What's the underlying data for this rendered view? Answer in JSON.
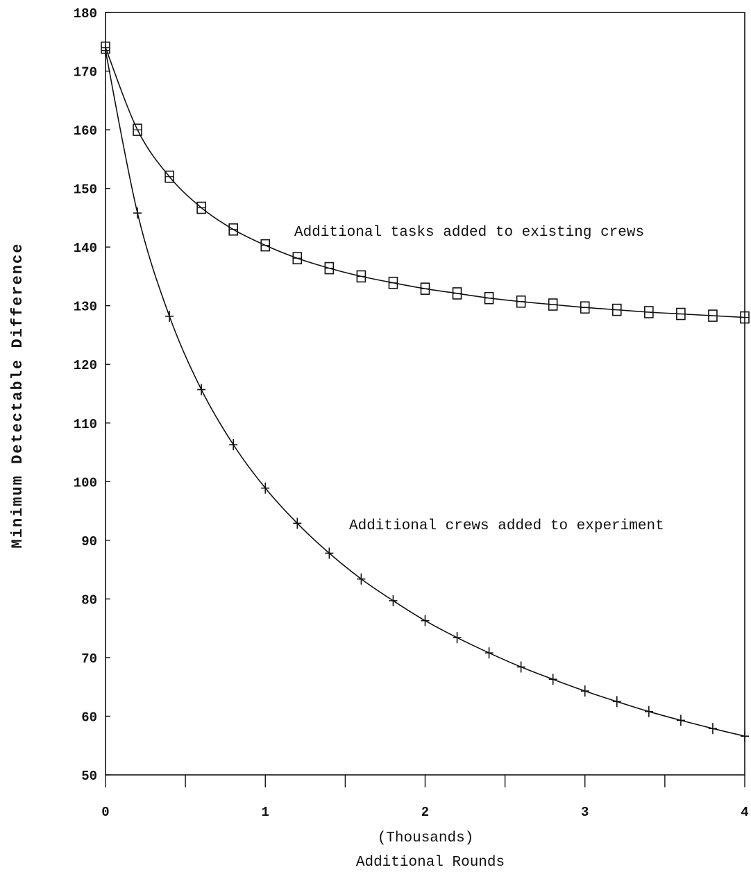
{
  "chart_data": {
    "type": "line",
    "title": "",
    "xlabel": "(Thousands)",
    "xlabel_line2": "Additional Rounds",
    "ylabel": "Minimum Detectable Difference",
    "xlim": [
      0,
      4
    ],
    "ylim": [
      50,
      180
    ],
    "xticks": [
      "0",
      "1",
      "2",
      "3",
      "4"
    ],
    "yticks": [
      "50",
      "60",
      "70",
      "80",
      "90",
      "100",
      "110",
      "120",
      "130",
      "140",
      "150",
      "160",
      "170",
      "180"
    ],
    "grid": false,
    "legend": "none",
    "x": [
      0,
      0.2,
      0.4,
      0.6,
      0.8,
      1.0,
      1.2,
      1.4,
      1.6,
      1.8,
      2.0,
      2.2,
      2.4,
      2.6,
      2.8,
      3.0,
      3.2,
      3.4,
      3.6,
      3.8,
      4.0
    ],
    "series": [
      {
        "marker": "square",
        "annotation": "Additional tasks added to existing crews",
        "values": [
          174,
          160,
          152,
          146.7,
          143,
          140.3,
          138.1,
          136.4,
          135,
          133.9,
          132.9,
          132.1,
          131.3,
          130.7,
          130.2,
          129.7,
          129.3,
          128.9,
          128.6,
          128.3,
          128
        ]
      },
      {
        "marker": "plus",
        "annotation": "Additional crews added to experiment",
        "values": [
          173.5,
          145.8,
          128.2,
          115.7,
          106.3,
          98.9,
          92.9,
          87.8,
          83.4,
          79.7,
          76.3,
          73.4,
          70.8,
          68.4,
          66.3,
          64.3,
          62.5,
          60.8,
          59.3,
          57.9,
          56.6
        ]
      }
    ],
    "colors": {
      "line": "#111111",
      "axis": "#111111",
      "background": "#ffffff"
    }
  }
}
